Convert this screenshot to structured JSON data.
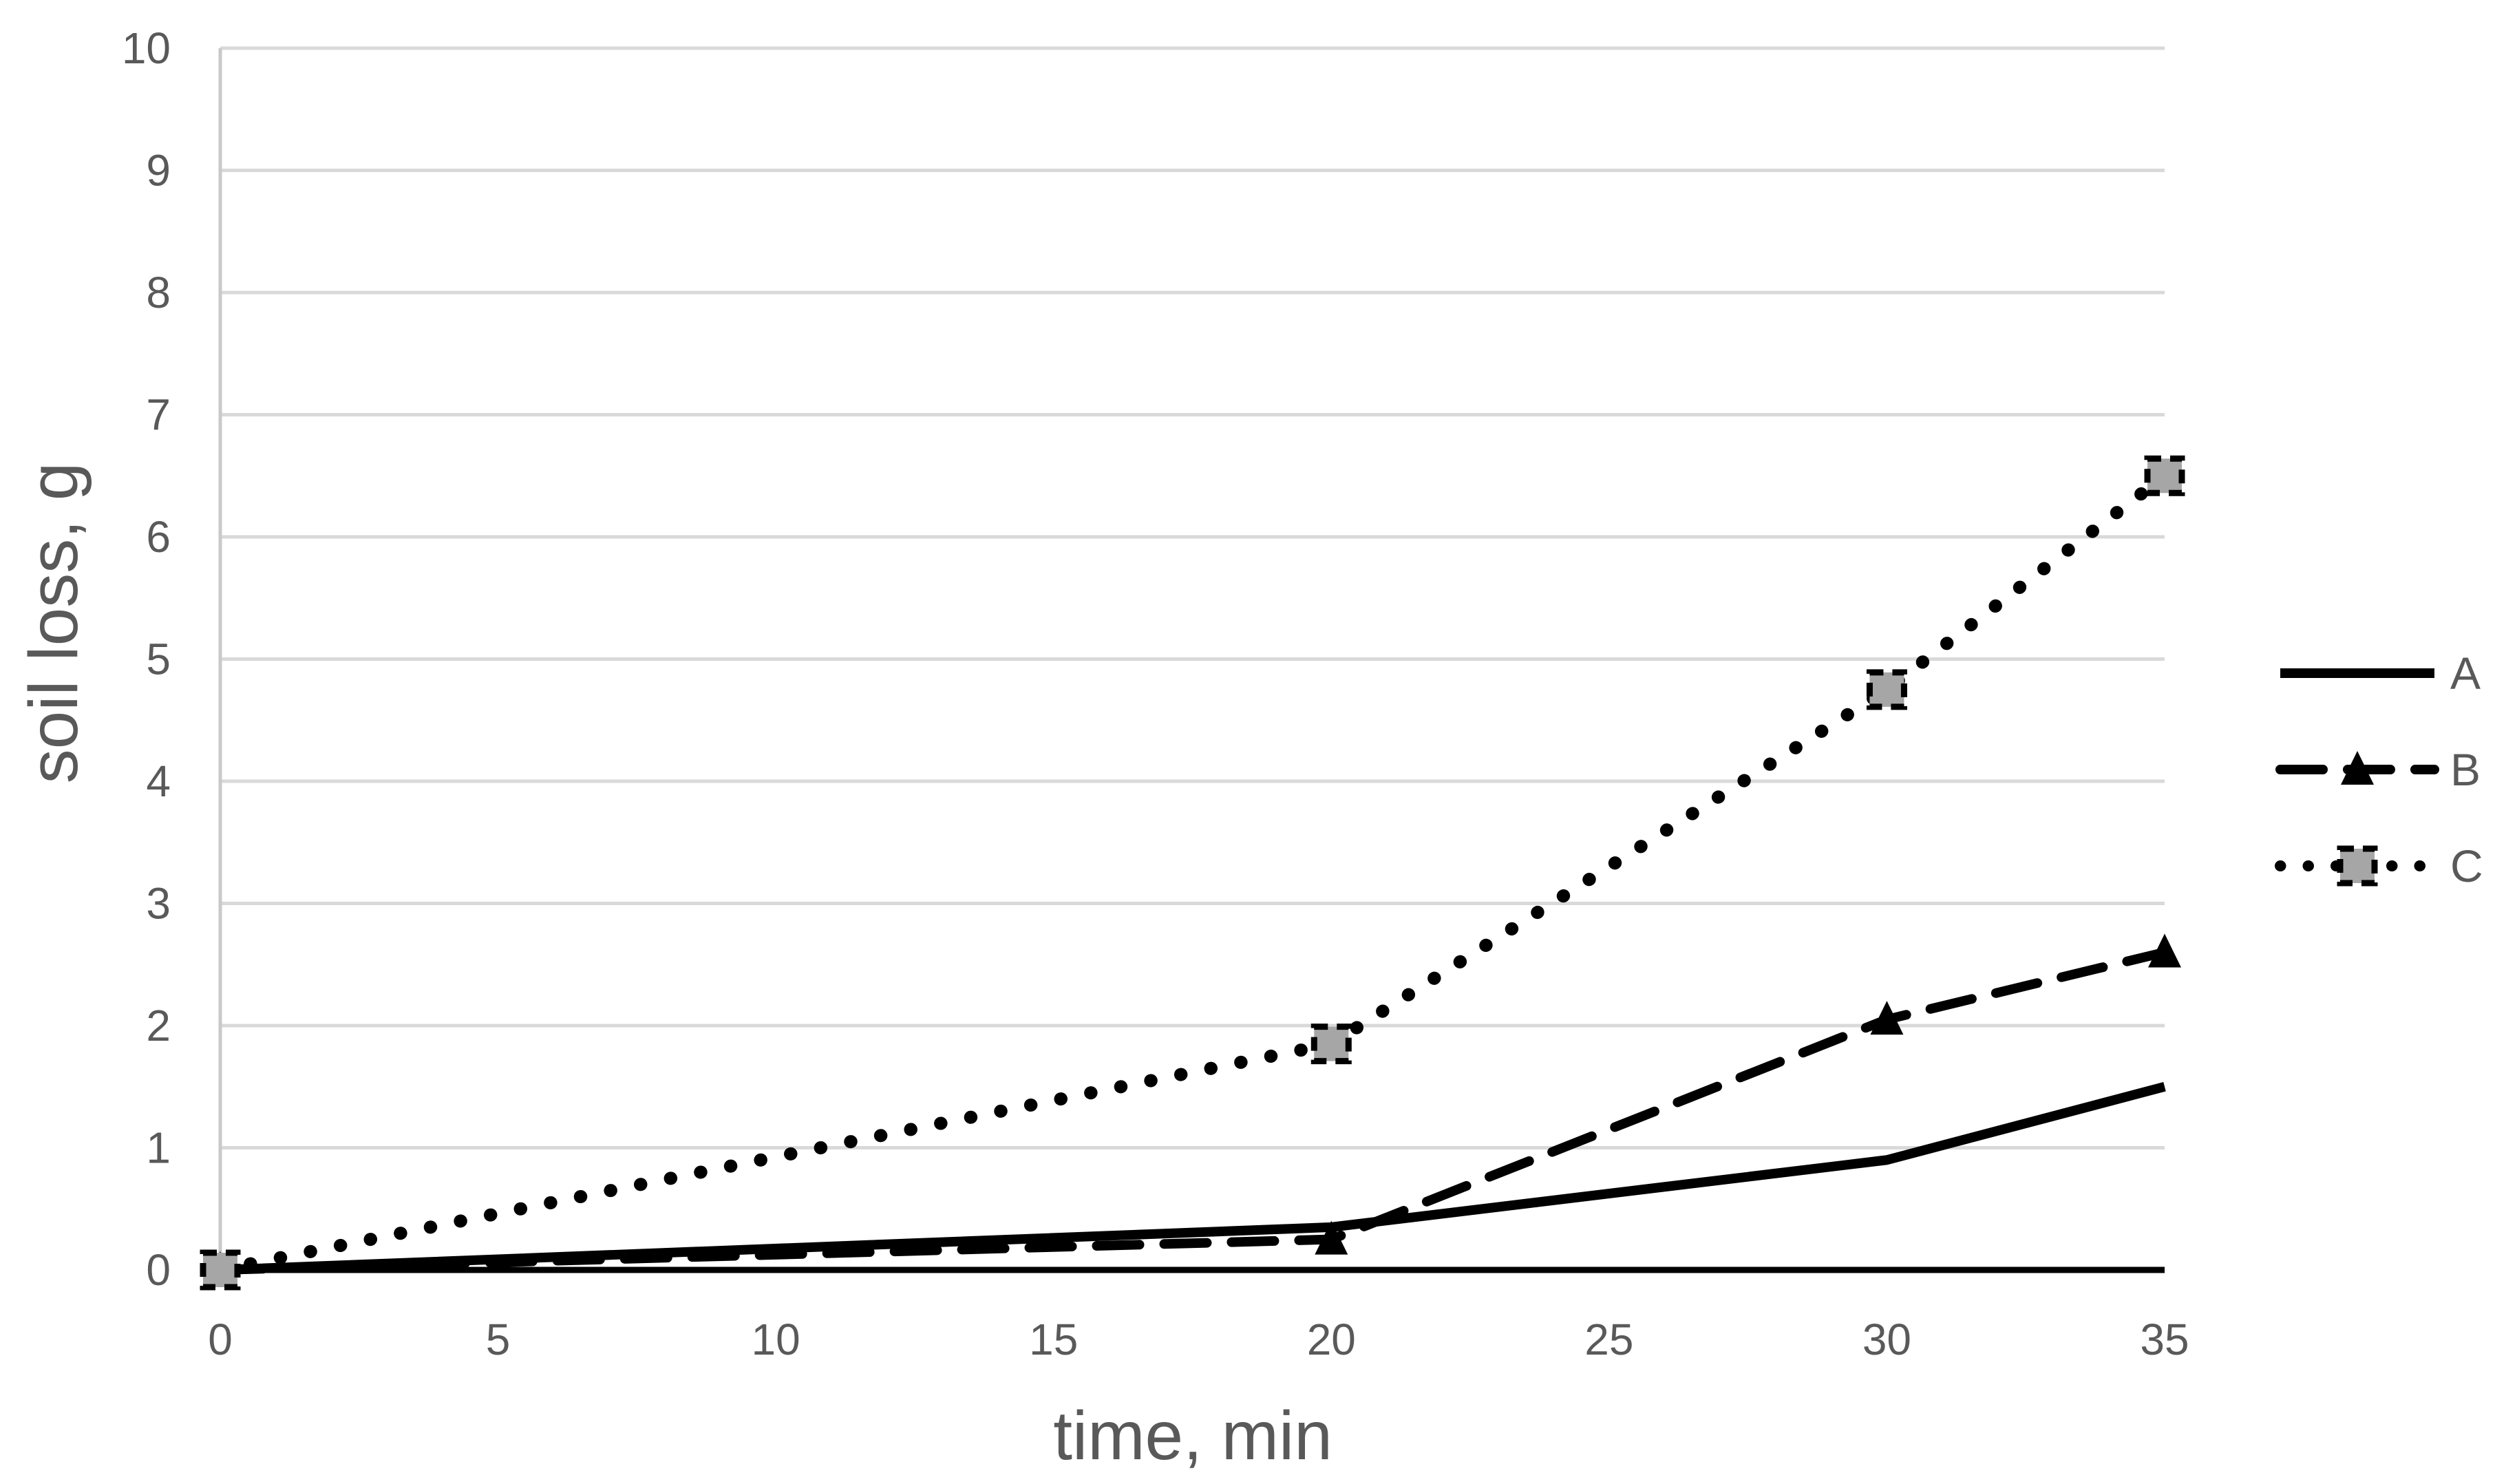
{
  "chart_data": {
    "type": "line",
    "title": "",
    "xlabel": "time, min",
    "ylabel": "soil loss, g",
    "x": [
      0,
      20,
      30,
      35
    ],
    "series": [
      {
        "name": "A",
        "values": [
          0,
          0.35,
          0.9,
          1.5
        ],
        "line_style": "solid",
        "marker": "none"
      },
      {
        "name": "B",
        "values": [
          0,
          0.25,
          2.05,
          2.6
        ],
        "line_style": "dashed",
        "marker": "triangle"
      },
      {
        "name": "C",
        "values": [
          0,
          1.85,
          4.75,
          6.5
        ],
        "line_style": "dotted",
        "marker": "square"
      }
    ],
    "xlim": [
      0,
      35
    ],
    "ylim": [
      0,
      10
    ],
    "x_ticks": [
      0,
      5,
      10,
      15,
      20,
      25,
      30,
      35
    ],
    "y_ticks": [
      0,
      1,
      2,
      3,
      4,
      5,
      6,
      7,
      8,
      9,
      10
    ],
    "grid": "horizontal-major",
    "legend_position": "right",
    "legend_entries": [
      "A",
      "B",
      "C"
    ]
  },
  "colors": {
    "background": "#ffffff",
    "series_line": "#000000",
    "marker_triangle_fill": "#000000",
    "marker_square_fill": "#a6a6a6",
    "marker_square_border": "#000000",
    "gridline": "#d9d9d9",
    "value_axis_line": "#c9c9c9",
    "category_axis_line": "#000000",
    "label_text": "#595959"
  }
}
